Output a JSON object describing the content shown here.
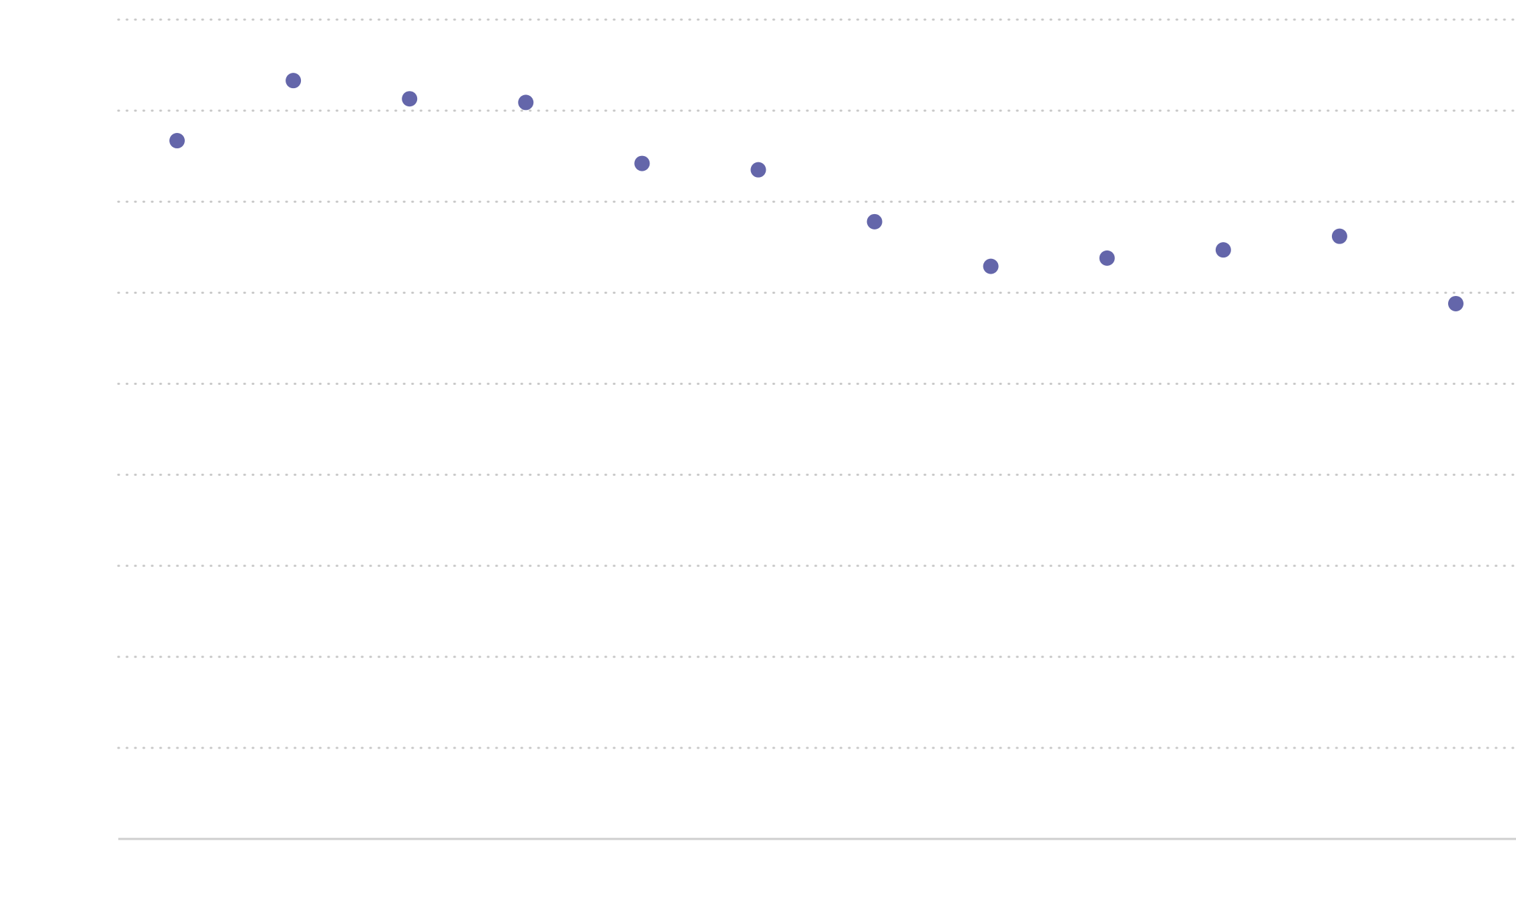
{
  "chart_data": {
    "type": "scatter",
    "title": "",
    "xlabel": "",
    "ylabel": "",
    "grid": true,
    "gridline_count": 9,
    "colors": {
      "point": "#6466aa",
      "grid": "#c9c9c9",
      "axis": "#cfcfcf",
      "background": "#ffffff"
    },
    "series": [
      {
        "values": [
          7.67,
          8.33,
          8.13,
          8.09,
          7.42,
          7.35,
          6.78,
          6.29,
          6.38,
          6.47,
          6.62,
          5.88
        ]
      }
    ],
    "ylim": [
      0,
      9
    ]
  }
}
